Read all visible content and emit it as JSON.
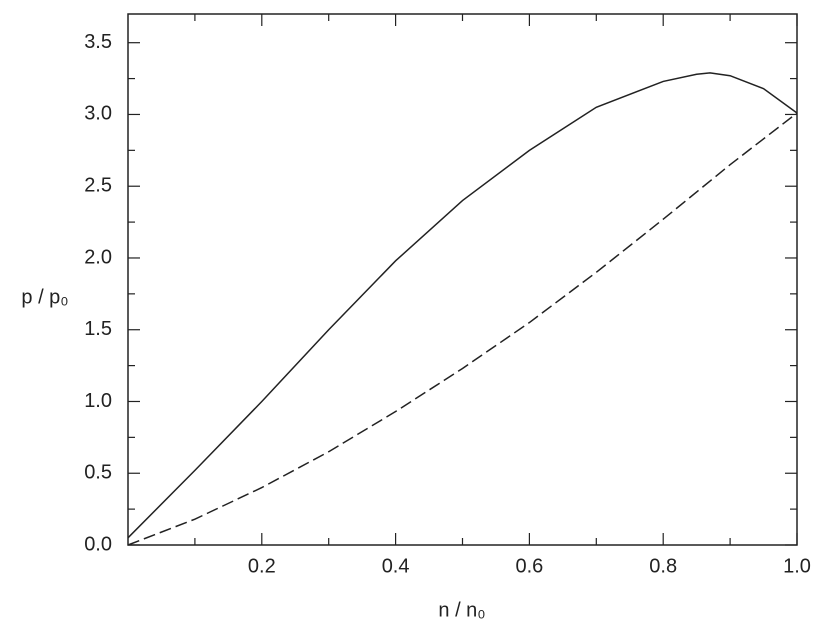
{
  "chart_data": {
    "type": "line",
    "x_label": "n / n₀",
    "y_label": "p / p₀",
    "xlim": [
      0,
      1
    ],
    "ylim": [
      0,
      3.7
    ],
    "xticks": [
      0.2,
      0.4,
      0.6,
      0.8,
      {
        "value": 1,
        "label": "1.0"
      }
    ],
    "xminorticks": [
      0.1,
      0.3,
      0.5,
      0.7,
      0.9
    ],
    "yticks": [
      {
        "value": 0,
        "label": "0.0"
      },
      0.5,
      {
        "value": 1,
        "label": "1.0"
      },
      1.5,
      {
        "value": 2,
        "label": "2.0"
      },
      2.5,
      {
        "value": 3,
        "label": "3.0"
      },
      3.5
    ],
    "yminorticks": [
      0.25,
      0.75,
      1.25,
      1.75,
      2.25,
      2.75,
      3.25
    ],
    "series": [
      {
        "color": "#222222",
        "dash": "solid",
        "x": [
          0,
          0.1,
          0.2,
          0.3,
          0.4,
          0.5,
          0.6,
          0.7,
          0.8,
          0.85,
          0.87,
          0.9,
          0.95,
          1.0
        ],
        "values": [
          0.05,
          0.52,
          1.0,
          1.5,
          1.98,
          2.4,
          2.75,
          3.05,
          3.23,
          3.28,
          3.29,
          3.27,
          3.18,
          3.01
        ]
      },
      {
        "color": "#222222",
        "dash": "dashed",
        "x": [
          0,
          0.1,
          0.2,
          0.3,
          0.4,
          0.5,
          0.6,
          0.7,
          0.8,
          0.9,
          1.0
        ],
        "values": [
          0.0,
          0.18,
          0.4,
          0.65,
          0.93,
          1.23,
          1.55,
          1.9,
          2.27,
          2.65,
          3.01
        ]
      }
    ]
  }
}
